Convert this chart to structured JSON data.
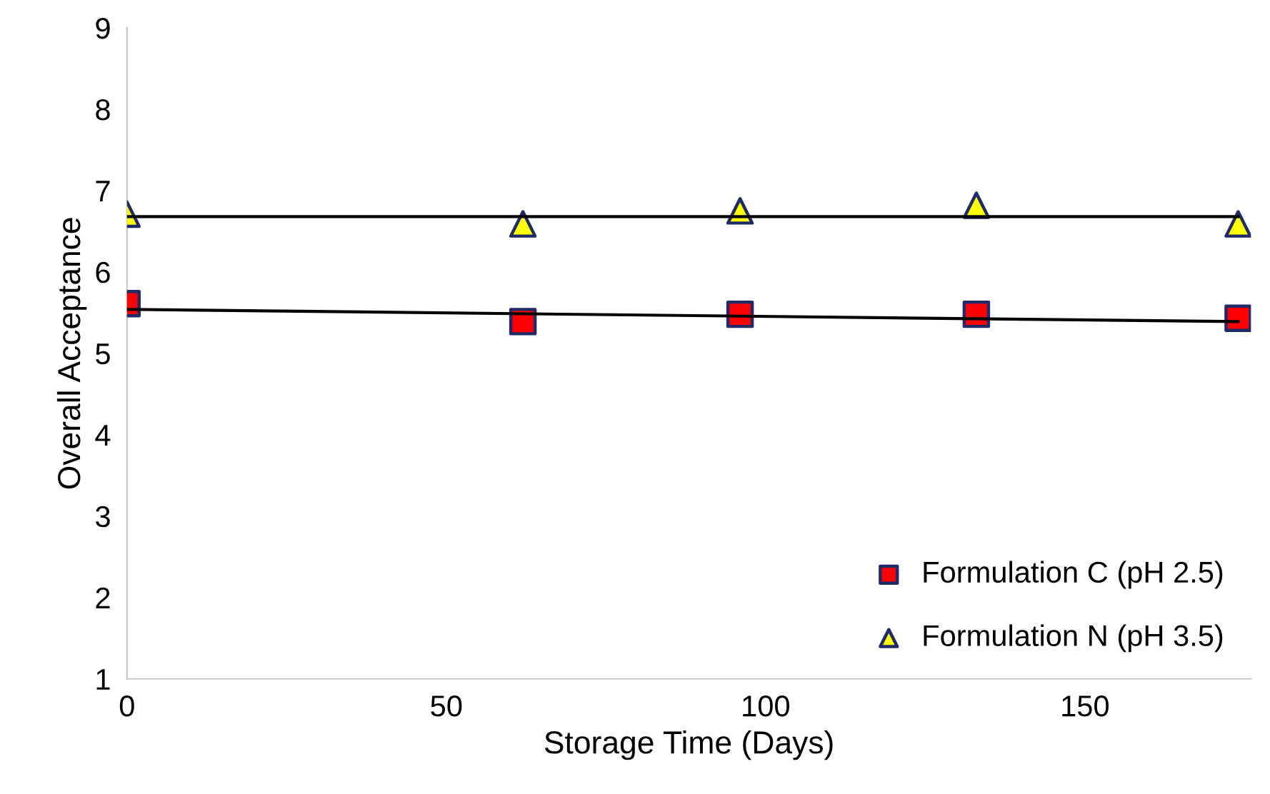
{
  "chart_data": {
    "type": "scatter",
    "xlabel": "Storage Time (Days)",
    "ylabel": "Overall Acceptance",
    "xlim": [
      0,
      176
    ],
    "xticks": [
      0,
      50,
      100,
      150
    ],
    "ylim": [
      1,
      9
    ],
    "yticks": [
      1,
      2,
      3,
      4,
      5,
      6,
      7,
      8,
      9
    ],
    "grid": false,
    "legend": "bottom right",
    "series": [
      {
        "type": "line",
        "color": "#000000",
        "x": [
          0,
          174
        ],
        "values": [
          5.54,
          5.39
        ],
        "marker": "none",
        "line_style": "solid"
      },
      {
        "type": "line",
        "color": "#000000",
        "x": [
          0,
          174
        ],
        "values": [
          6.68,
          6.68
        ],
        "marker": "none",
        "line_style": "solid"
      },
      {
        "name": "Formulation C (pH 2.5)",
        "color": "#ff0000",
        "x": [
          0,
          62,
          96,
          133,
          174
        ],
        "values": [
          5.61,
          5.39,
          5.48,
          5.48,
          5.43
        ],
        "marker": "square"
      },
      {
        "name": "Formulation N (pH 3.5)",
        "color": "#ffff00",
        "x": [
          0,
          62,
          96,
          133,
          174
        ],
        "values": [
          6.71,
          6.59,
          6.75,
          6.82,
          6.59
        ],
        "marker": "triangle"
      }
    ]
  }
}
